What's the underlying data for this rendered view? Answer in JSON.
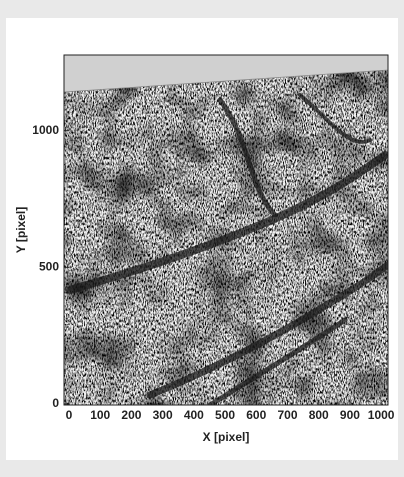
{
  "chart_data": {
    "type": "vector-field",
    "xlabel": "X [pixel]",
    "ylabel": "Y [pixel]",
    "xlim": [
      -16,
      1022
    ],
    "ylim": [
      -4,
      1277
    ],
    "xticks": [
      0,
      100,
      200,
      300,
      400,
      500,
      600,
      700,
      800,
      900,
      1000
    ],
    "yticks": [
      0,
      500,
      1000
    ]
  }
}
